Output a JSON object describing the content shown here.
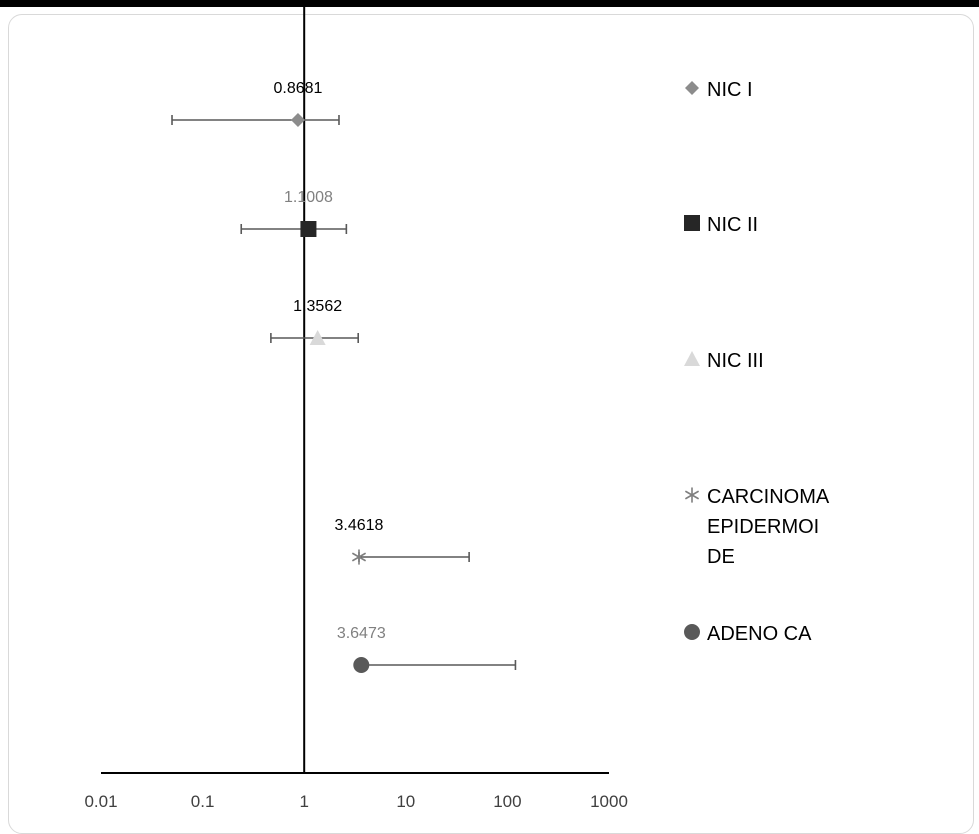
{
  "chart_data": {
    "type": "scatter",
    "subtype": "forest-plot",
    "title": "",
    "xlabel": "",
    "ylabel": "",
    "x_scale": "log",
    "xlim": [
      0.01,
      1000
    ],
    "x_ticks": [
      "0.01",
      "0.1",
      "1",
      "10",
      "100",
      "1000"
    ],
    "reference_line_x": 1,
    "grid": false,
    "legend_position": "right",
    "series": [
      {
        "name": "NIC I",
        "name_lines": [
          "NIC I"
        ],
        "value": 0.8681,
        "label": "0.8681",
        "ci": [
          0.05,
          2.2
        ],
        "marker": "diamond",
        "color": "#8c8c8c",
        "label_color": "#000000"
      },
      {
        "name": "NIC II",
        "name_lines": [
          "NIC II"
        ],
        "value": 1.1008,
        "label": "1.1008",
        "ci": [
          0.24,
          2.6
        ],
        "marker": "square",
        "color": "#262626",
        "label_color": "#808080"
      },
      {
        "name": "NIC III",
        "name_lines": [
          "NIC III"
        ],
        "value": 1.3562,
        "label": "1.3562",
        "ci": [
          0.47,
          3.4
        ],
        "marker": "triangle",
        "color": "#d9d9d9",
        "label_color": "#000000"
      },
      {
        "name": "CARCINOMA EPIDERMOIDE",
        "name_lines": [
          "CARCINOMA",
          "EPIDERMOI",
          "DE"
        ],
        "value": 3.4618,
        "label": "3.4618",
        "ci": [
          3.4618,
          42
        ],
        "marker": "asterisk",
        "color": "#7f7f7f",
        "label_color": "#000000"
      },
      {
        "name": "ADENO CA",
        "name_lines": [
          "ADENO CA"
        ],
        "value": 3.6473,
        "label": "3.6473",
        "ci": [
          3.6473,
          120
        ],
        "marker": "circle",
        "color": "#595959",
        "label_color": "#808080"
      }
    ]
  }
}
